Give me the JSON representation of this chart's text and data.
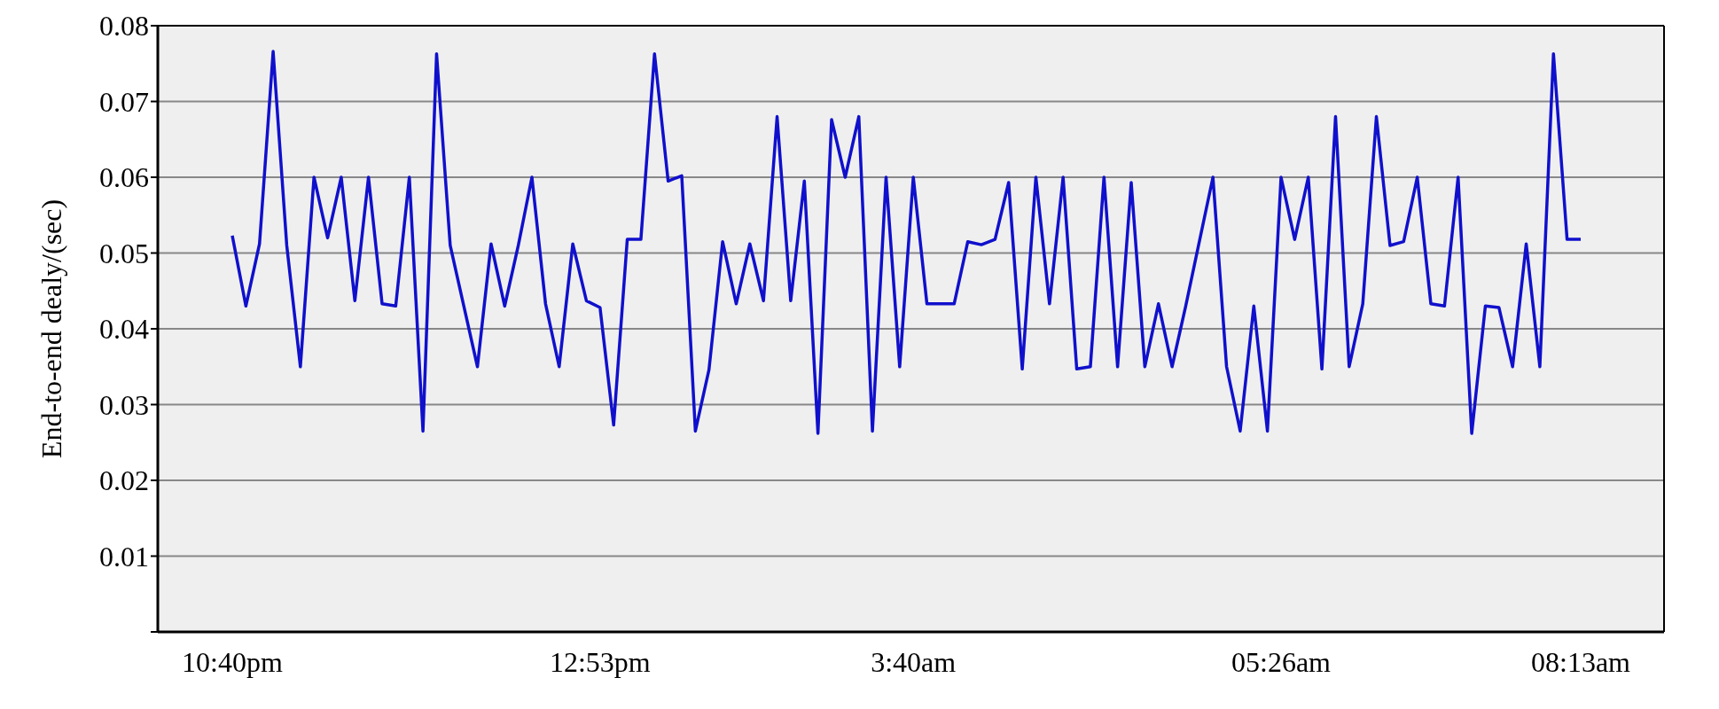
{
  "chart_data": {
    "type": "line",
    "ylabel": "End-to-end dealy/(sec)",
    "categories": [
      "10:40pm",
      null,
      null,
      null,
      null,
      null,
      null,
      null,
      null,
      null,
      null,
      null,
      null,
      null,
      null,
      null,
      null,
      null,
      null,
      null,
      null,
      null,
      null,
      null,
      null,
      null,
      null,
      "12:53pm",
      null,
      null,
      null,
      null,
      null,
      null,
      null,
      null,
      null,
      null,
      null,
      null,
      null,
      null,
      null,
      null,
      null,
      null,
      null,
      null,
      null,
      null,
      "3:40am",
      null,
      null,
      null,
      null,
      null,
      null,
      null,
      null,
      null,
      null,
      null,
      null,
      null,
      null,
      null,
      null,
      null,
      null,
      null,
      null,
      null,
      null,
      null,
      null,
      null,
      null,
      "05:26am",
      null,
      null,
      null,
      null,
      null,
      null,
      null,
      null,
      null,
      null,
      null,
      null,
      null,
      null,
      null,
      null,
      null,
      null,
      null,
      null,
      null,
      "08:13am"
    ],
    "values": [
      0.0523,
      0.043,
      0.0512,
      0.0766,
      0.051,
      0.035,
      0.06,
      0.052,
      0.06,
      0.0437,
      0.06,
      0.0433,
      0.043,
      0.06,
      0.0265,
      0.0763,
      0.051,
      0.043,
      0.035,
      0.0512,
      0.043,
      0.051,
      0.06,
      0.0433,
      0.035,
      0.0512,
      0.0437,
      0.0428,
      0.0273,
      0.0518,
      0.0518,
      0.0763,
      0.0595,
      0.0602,
      0.0265,
      0.0346,
      0.0515,
      0.0433,
      0.0512,
      0.0437,
      0.068,
      0.0437,
      0.0595,
      0.0262,
      0.0676,
      0.06,
      0.068,
      0.0265,
      0.06,
      0.035,
      0.06,
      0.0433,
      0.0433,
      0.0433,
      0.0515,
      0.0511,
      0.0518,
      0.0593,
      0.0347,
      0.06,
      0.0433,
      0.06,
      0.0347,
      0.035,
      0.06,
      0.035,
      0.0593,
      0.035,
      0.0433,
      0.035,
      0.043,
      0.0515,
      0.06,
      0.035,
      0.0265,
      0.043,
      0.0265,
      0.06,
      0.0518,
      0.06,
      0.0347,
      0.068,
      0.035,
      0.0433,
      0.068,
      0.051,
      0.0515,
      0.06,
      0.0433,
      0.043,
      0.06,
      0.0262,
      0.043,
      0.0428,
      0.035,
      0.0512,
      0.035,
      0.0763,
      0.0518,
      0.0518
    ],
    "color": "#1010cc",
    "ylim": [
      0,
      0.08
    ],
    "yticks": [
      {
        "value": 0,
        "label": null
      },
      0.01,
      0.02,
      0.03,
      0.04,
      0.05,
      0.06,
      0.07,
      0.08
    ],
    "grid": "y",
    "marker": "none",
    "line_style": "solid"
  }
}
